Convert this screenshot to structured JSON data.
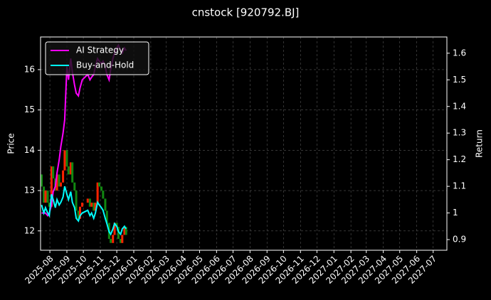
{
  "chart_data": {
    "type": "line",
    "title": "cnstock [920792.BJ]",
    "ylabel": "Price",
    "y2label": "Return",
    "grid": true,
    "legend": "upper left",
    "x": [
      "2025-07-17",
      "2025-07-21",
      "2025-07-24",
      "2025-07-28",
      "2025-07-31",
      "2025-08-04",
      "2025-08-07",
      "2025-08-11",
      "2025-08-14",
      "2025-08-18",
      "2025-08-21",
      "2025-08-25",
      "2025-08-28",
      "2025-09-01",
      "2025-09-04",
      "2025-09-08",
      "2025-09-11",
      "2025-09-15",
      "2025-09-18",
      "2025-09-22",
      "2025-09-25",
      "2025-09-29",
      "2025-10-09",
      "2025-10-13",
      "2025-10-16",
      "2025-10-20",
      "2025-10-23",
      "2025-10-27",
      "2025-10-30",
      "2025-11-03",
      "2025-11-06",
      "2025-11-10",
      "2025-11-13",
      "2025-11-17",
      "2025-11-20",
      "2025-11-24",
      "2025-11-27",
      "2025-12-01",
      "2025-12-04",
      "2025-12-08",
      "2025-12-11",
      "2025-12-15",
      "2025-12-18"
    ],
    "xlim": [
      "2025-07-15",
      "2027-07-26"
    ],
    "xticks": [
      "2025-08",
      "2025-09",
      "2025-10",
      "2025-11",
      "2025-12",
      "2026-01",
      "2026-02",
      "2026-03",
      "2026-04",
      "2026-05",
      "2026-06",
      "2026-07",
      "2026-08",
      "2026-09",
      "2026-10",
      "2026-11",
      "2026-12",
      "2027-01",
      "2027-02",
      "2027-03",
      "2027-04",
      "2027-05",
      "2027-06",
      "2027-07"
    ],
    "ylim": [
      11.52,
      16.81
    ],
    "yticks": [
      12,
      13,
      14,
      15,
      16
    ],
    "y2lim": [
      0.86,
      1.661
    ],
    "y2ticks": [
      0.9,
      1.0,
      1.1,
      1.2,
      1.3,
      1.4,
      1.5,
      1.6
    ],
    "candles": {
      "up_color": "#ff2200",
      "down_color": "#118811",
      "open": [
        13.4,
        13.1,
        12.7,
        13.0,
        12.7,
        12.6,
        13.6,
        13.3,
        13.0,
        13.4,
        13.1,
        13.2,
        13.5,
        14.0,
        13.6,
        13.4,
        13.7,
        13.2,
        13.0,
        12.5,
        12.3,
        12.6,
        12.7,
        12.8,
        12.6,
        12.7,
        12.5,
        12.7,
        13.2,
        13.1,
        13.0,
        12.8,
        12.5,
        12.2,
        11.8,
        11.7,
        11.9,
        12.2,
        12.1,
        11.8,
        11.7,
        11.9,
        12.1
      ],
      "close": [
        13.1,
        12.7,
        13.0,
        12.7,
        12.6,
        13.6,
        13.3,
        13.0,
        13.4,
        13.1,
        13.2,
        13.5,
        14.0,
        13.6,
        13.4,
        13.7,
        13.2,
        13.0,
        12.5,
        12.3,
        12.6,
        12.7,
        12.8,
        12.6,
        12.7,
        12.5,
        12.7,
        13.2,
        13.1,
        13.0,
        12.8,
        12.5,
        12.2,
        11.8,
        11.7,
        11.9,
        12.2,
        12.1,
        11.8,
        11.7,
        11.9,
        12.1,
        11.9
      ]
    },
    "series": [
      {
        "name": "AI Strategy",
        "color": "#ff00ff",
        "axis": "y2",
        "values": [
          1.0,
          1.0,
          1.0,
          0.99,
          1.0,
          1.03,
          1.08,
          1.1,
          1.15,
          1.2,
          1.25,
          1.3,
          1.35,
          1.55,
          1.5,
          1.58,
          1.53,
          1.48,
          1.45,
          1.44,
          1.47,
          1.5,
          1.52,
          1.5,
          1.51,
          1.52,
          1.55,
          1.58,
          1.57,
          1.56,
          1.57,
          1.55,
          1.52,
          1.5,
          1.54,
          1.58,
          1.6,
          1.62,
          1.63,
          1.61,
          1.6,
          1.62,
          1.61
        ]
      },
      {
        "name": "Buy-and-Hold",
        "color": "#00ffff",
        "axis": "y2",
        "values": [
          1.03,
          1.0,
          1.02,
          1.0,
          0.99,
          1.07,
          1.05,
          1.02,
          1.05,
          1.03,
          1.04,
          1.06,
          1.1,
          1.07,
          1.05,
          1.08,
          1.04,
          1.02,
          0.98,
          0.97,
          0.99,
          1.0,
          1.01,
          0.99,
          1.0,
          0.98,
          1.0,
          1.04,
          1.03,
          1.02,
          1.01,
          0.98,
          0.96,
          0.93,
          0.92,
          0.94,
          0.96,
          0.95,
          0.93,
          0.92,
          0.94,
          0.95,
          0.94
        ]
      }
    ]
  }
}
